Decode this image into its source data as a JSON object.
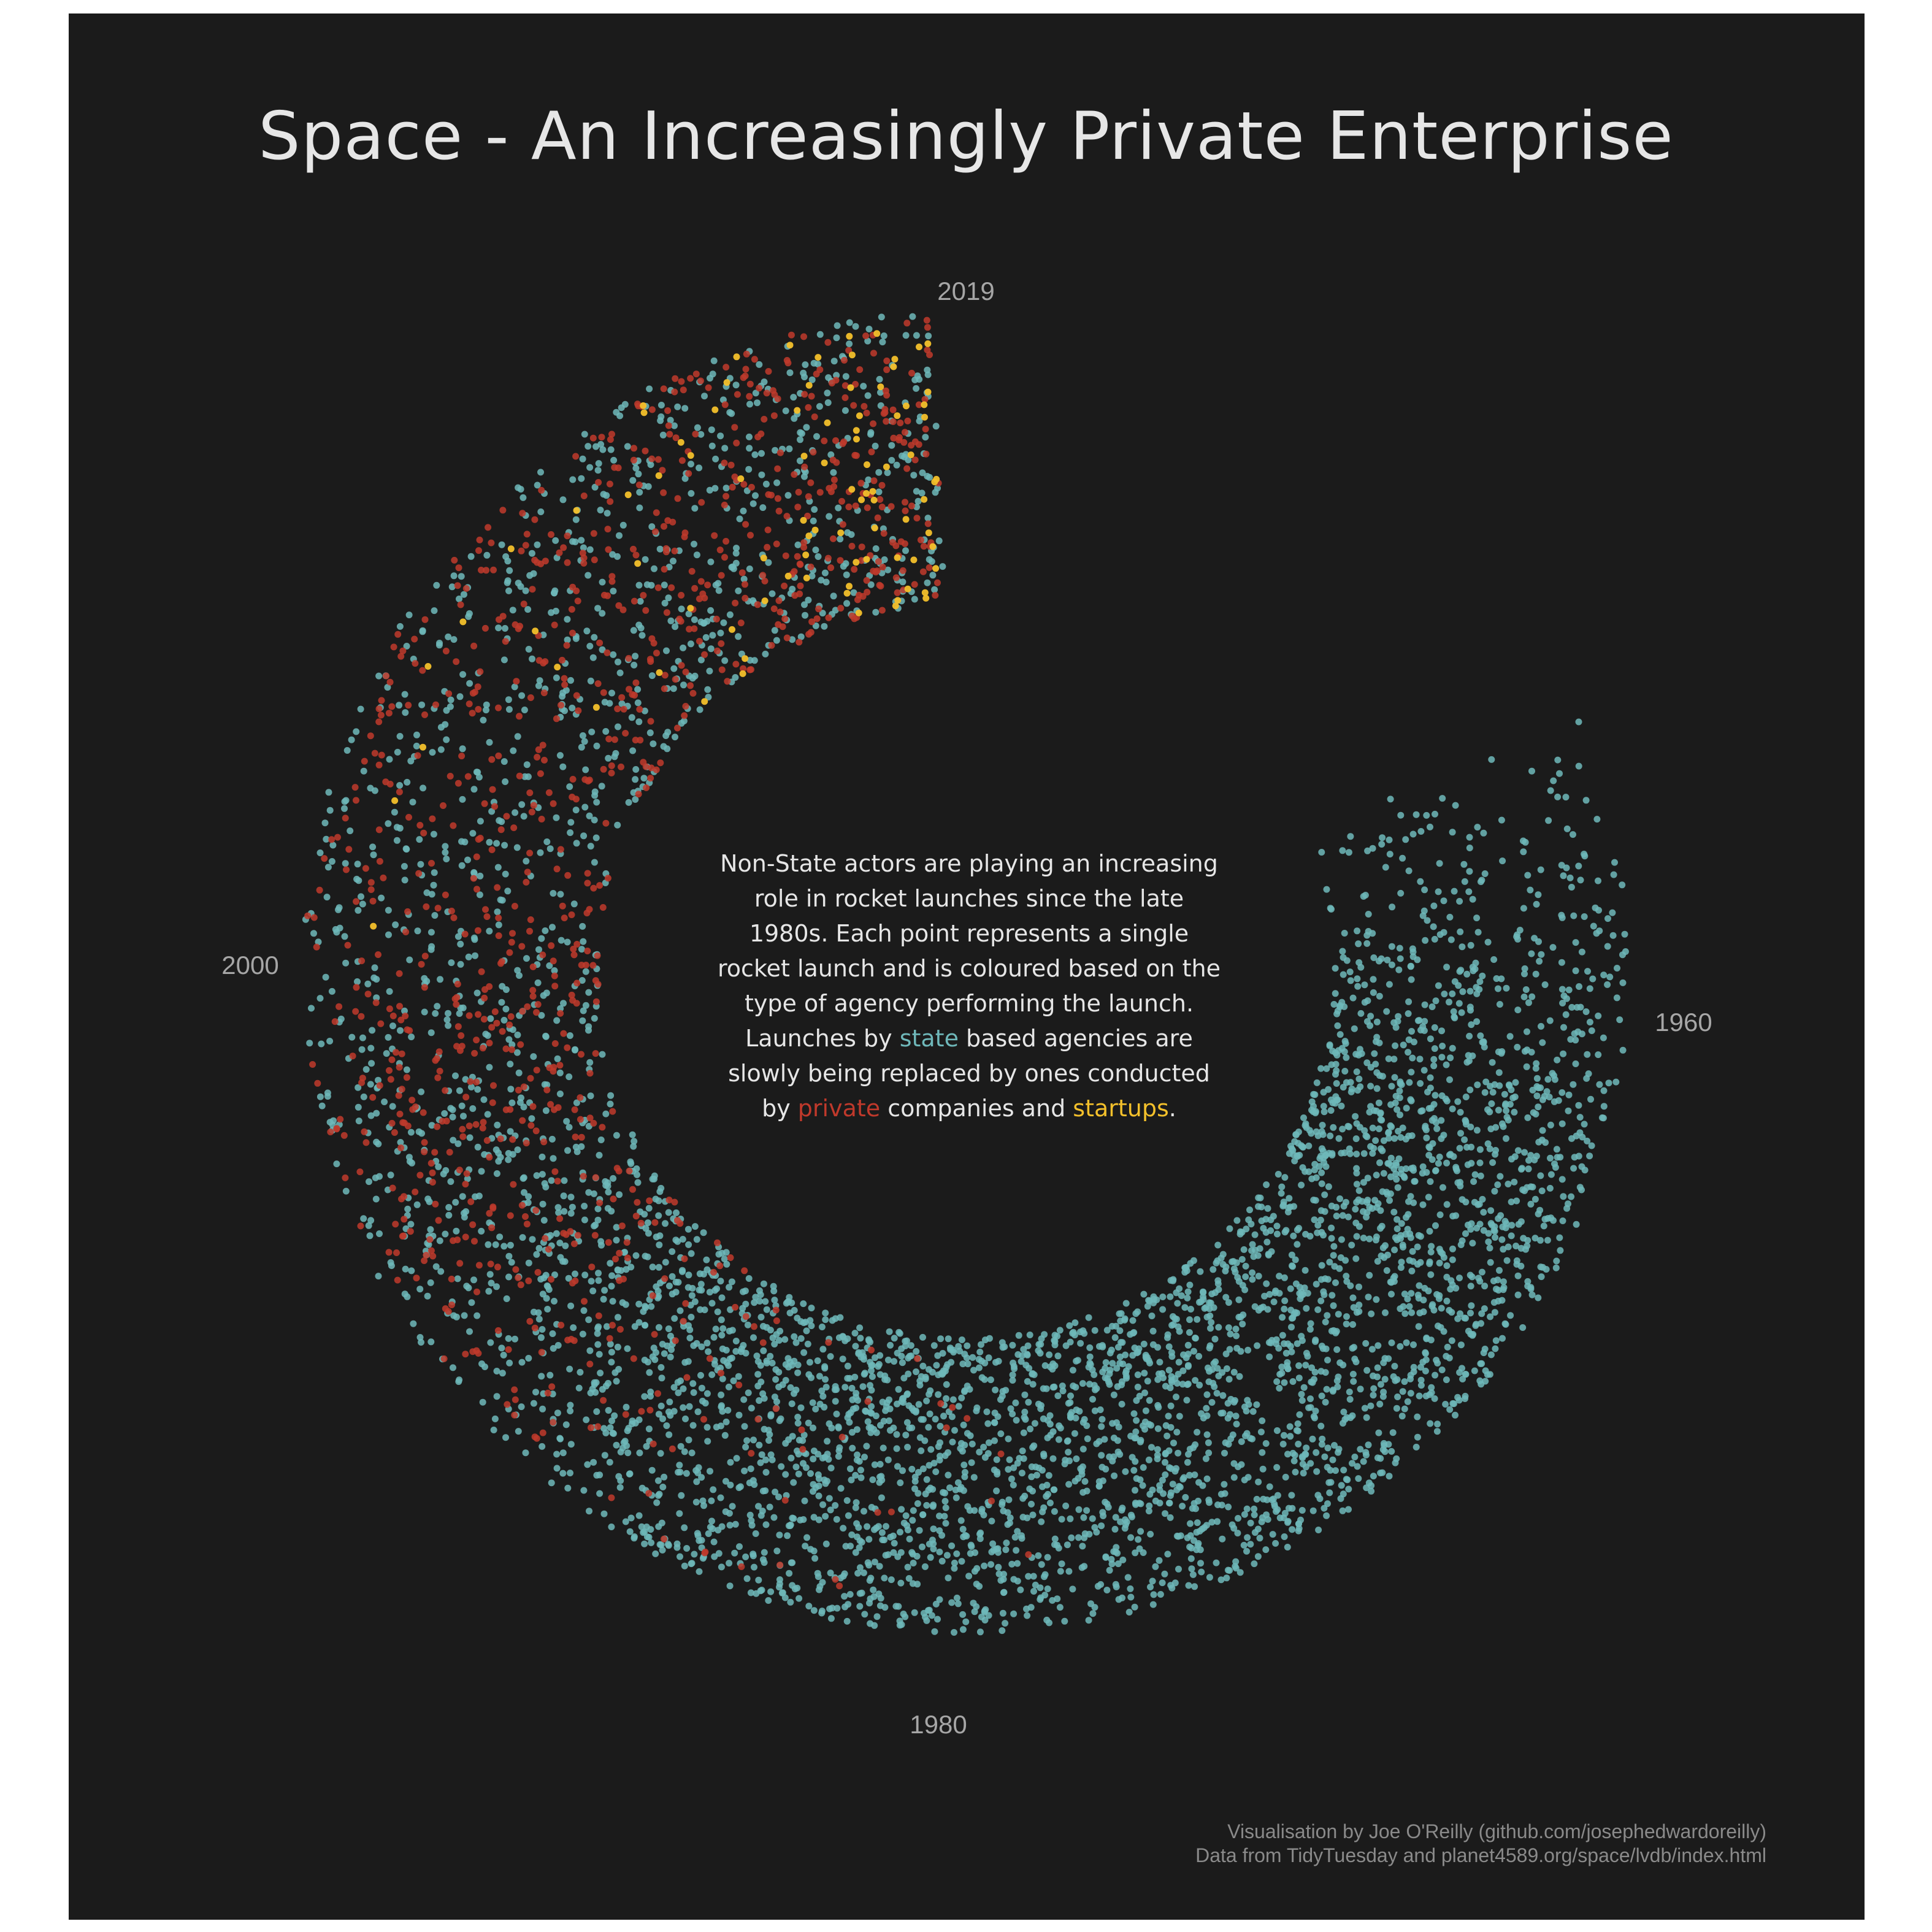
{
  "title": "Space - An Increasingly Private Enterprise",
  "annotation": {
    "part1": "Non-State actors are playing an increasing role in rocket launches since the late 1980s. Each point represents a single rocket launch and is coloured based on the type of agency performing the launch. Launches by ",
    "state_word": "state",
    "part2": " based agencies are slowly being replaced by ones conducted by ",
    "private_word": "private",
    "part3": " companies and ",
    "startups_word": "startups",
    "part4": "."
  },
  "caption": {
    "line1": "Visualisation by Joe O'Reilly (github.com/josephedwardoreilly)",
    "line2": "Data from TidyTuesday and planet4589.org/space/lvdb/index.html"
  },
  "colors": {
    "background": "#1b1b1b",
    "state": "#6fb8ba",
    "private": "#c0392b",
    "startup": "#f3c02b"
  },
  "chart_data": {
    "type": "scatter",
    "coordinate_system": "polar",
    "x_field": "launch year",
    "xlim": [
      1957,
      2020
    ],
    "year_ticks": [
      "1960",
      "1980",
      "2000",
      "2019"
    ],
    "series": [
      {
        "name": "state",
        "color": "#6fb8ba",
        "approx_launches_per_year": [
          [
            1957,
            3
          ],
          [
            1958,
            28
          ],
          [
            1959,
            22
          ],
          [
            1960,
            40
          ],
          [
            1961,
            50
          ],
          [
            1962,
            77
          ],
          [
            1963,
            70
          ],
          [
            1964,
            87
          ],
          [
            1965,
            112
          ],
          [
            1966,
            124
          ],
          [
            1967,
            137
          ],
          [
            1968,
            126
          ],
          [
            1969,
            120
          ],
          [
            1970,
            115
          ],
          [
            1971,
            120
          ],
          [
            1972,
            108
          ],
          [
            1973,
            115
          ],
          [
            1974,
            107
          ],
          [
            1975,
            126
          ],
          [
            1976,
            126
          ],
          [
            1977,
            124
          ],
          [
            1978,
            126
          ],
          [
            1979,
            105
          ],
          [
            1980,
            105
          ],
          [
            1981,
            120
          ],
          [
            1982,
            120
          ],
          [
            1983,
            125
          ],
          [
            1984,
            125
          ],
          [
            1985,
            120
          ],
          [
            1986,
            100
          ],
          [
            1987,
            105
          ],
          [
            1988,
            100
          ],
          [
            1989,
            85
          ],
          [
            1990,
            90
          ],
          [
            1991,
            70
          ],
          [
            1992,
            68
          ],
          [
            1993,
            60
          ],
          [
            1994,
            65
          ],
          [
            1995,
            55
          ],
          [
            1996,
            50
          ],
          [
            1997,
            52
          ],
          [
            1998,
            48
          ],
          [
            1999,
            42
          ],
          [
            2000,
            42
          ],
          [
            2001,
            35
          ],
          [
            2002,
            35
          ],
          [
            2003,
            38
          ],
          [
            2004,
            33
          ],
          [
            2005,
            33
          ],
          [
            2006,
            35
          ],
          [
            2007,
            35
          ],
          [
            2008,
            38
          ],
          [
            2009,
            40
          ],
          [
            2010,
            40
          ],
          [
            2011,
            45
          ],
          [
            2012,
            42
          ],
          [
            2013,
            42
          ],
          [
            2014,
            45
          ],
          [
            2015,
            42
          ],
          [
            2016,
            45
          ],
          [
            2017,
            42
          ],
          [
            2018,
            50
          ],
          [
            2019,
            48
          ]
        ]
      },
      {
        "name": "private",
        "color": "#c0392b",
        "approx_launches_per_year": [
          [
            1980,
            2
          ],
          [
            1981,
            2
          ],
          [
            1982,
            3
          ],
          [
            1983,
            3
          ],
          [
            1984,
            4
          ],
          [
            1985,
            4
          ],
          [
            1986,
            5
          ],
          [
            1987,
            6
          ],
          [
            1988,
            8
          ],
          [
            1989,
            10
          ],
          [
            1990,
            15
          ],
          [
            1991,
            18
          ],
          [
            1992,
            20
          ],
          [
            1993,
            22
          ],
          [
            1994,
            25
          ],
          [
            1995,
            28
          ],
          [
            1996,
            30
          ],
          [
            1997,
            35
          ],
          [
            1998,
            35
          ],
          [
            1999,
            35
          ],
          [
            2000,
            38
          ],
          [
            2001,
            25
          ],
          [
            2002,
            25
          ],
          [
            2003,
            22
          ],
          [
            2004,
            22
          ],
          [
            2005,
            22
          ],
          [
            2006,
            25
          ],
          [
            2007,
            28
          ],
          [
            2008,
            28
          ],
          [
            2009,
            30
          ],
          [
            2010,
            28
          ],
          [
            2011,
            30
          ],
          [
            2012,
            30
          ],
          [
            2013,
            35
          ],
          [
            2014,
            38
          ],
          [
            2015,
            40
          ],
          [
            2016,
            40
          ],
          [
            2017,
            45
          ],
          [
            2018,
            45
          ],
          [
            2019,
            40
          ]
        ]
      },
      {
        "name": "startups",
        "color": "#f3c02b",
        "approx_launches_per_year": [
          [
            2002,
            1
          ],
          [
            2004,
            1
          ],
          [
            2006,
            1
          ],
          [
            2007,
            1
          ],
          [
            2008,
            2
          ],
          [
            2009,
            2
          ],
          [
            2010,
            2
          ],
          [
            2011,
            2
          ],
          [
            2012,
            3
          ],
          [
            2013,
            4
          ],
          [
            2014,
            5
          ],
          [
            2015,
            6
          ],
          [
            2016,
            8
          ],
          [
            2017,
            12
          ],
          [
            2018,
            18
          ],
          [
            2019,
            20
          ]
        ]
      }
    ],
    "legend": "none",
    "grid": false
  }
}
